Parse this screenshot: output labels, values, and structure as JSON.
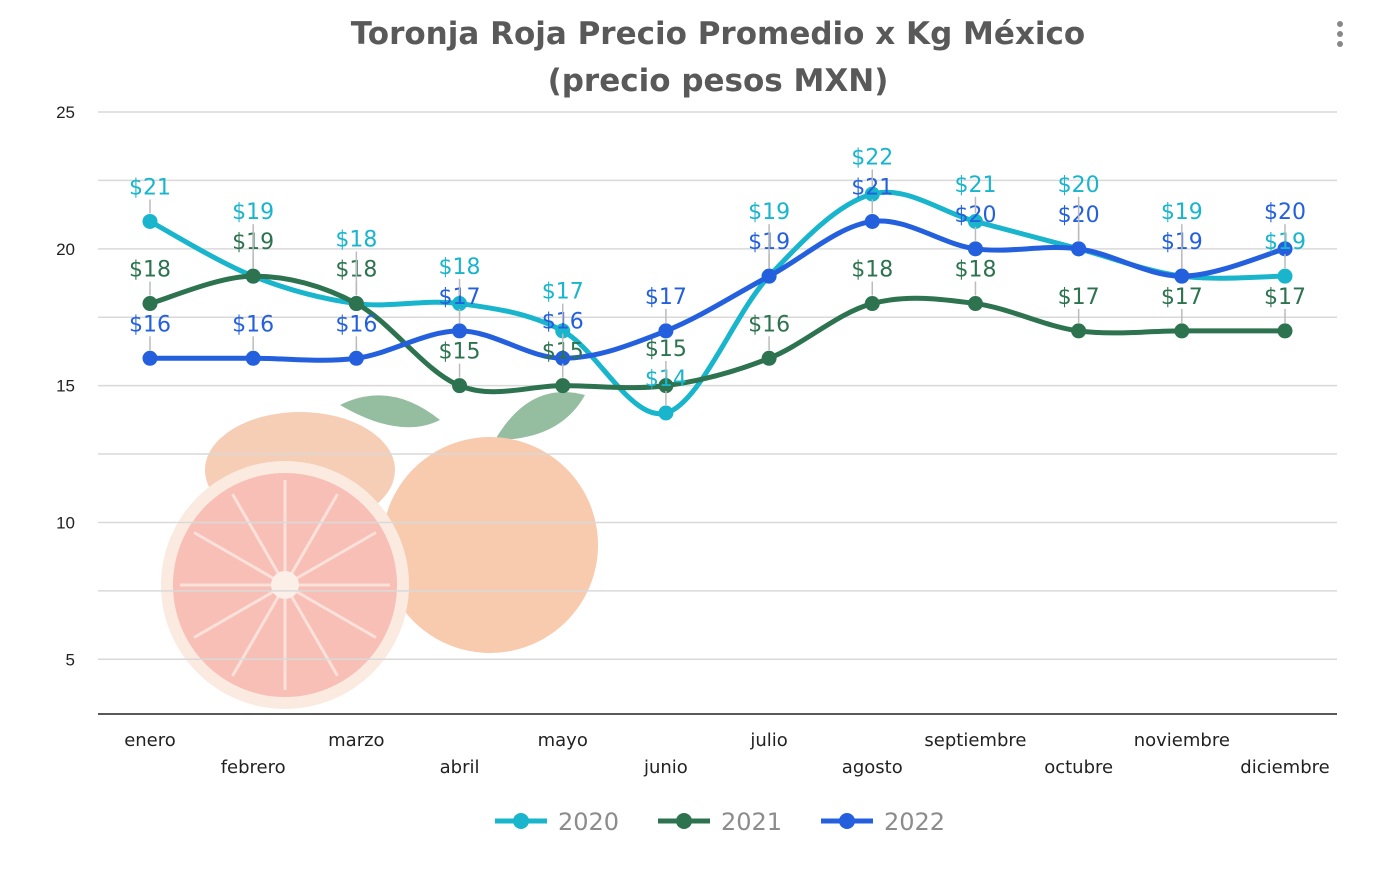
{
  "chart_data": {
    "type": "line",
    "title": "Toronja Roja Precio Promedio x Kg México",
    "subtitle": "(precio pesos MXN)",
    "categories": [
      "enero",
      "febrero",
      "marzo",
      "abril",
      "mayo",
      "junio",
      "julio",
      "agosto",
      "septiembre",
      "octubre",
      "noviembre",
      "diciembre"
    ],
    "ylim": [
      3,
      25
    ],
    "yticks": [
      5,
      10,
      15,
      20,
      25
    ],
    "grid": true,
    "legend_position": "bottom",
    "label_prefix": "$",
    "series": [
      {
        "name": "2020",
        "color": "#19b5cc",
        "values": [
          21,
          19,
          18,
          18,
          17,
          14,
          19,
          22,
          21,
          20,
          19,
          19
        ]
      },
      {
        "name": "2021",
        "color": "#2d7350",
        "values": [
          18,
          19,
          18,
          15,
          15,
          15,
          16,
          18,
          18,
          17,
          17,
          17
        ]
      },
      {
        "name": "2022",
        "color": "#2460de",
        "values": [
          16,
          16,
          16,
          17,
          16,
          17,
          19,
          21,
          20,
          20,
          19,
          20
        ]
      }
    ]
  },
  "menu_icon": "kebab-menu-icon",
  "background_image": "grapefruit"
}
